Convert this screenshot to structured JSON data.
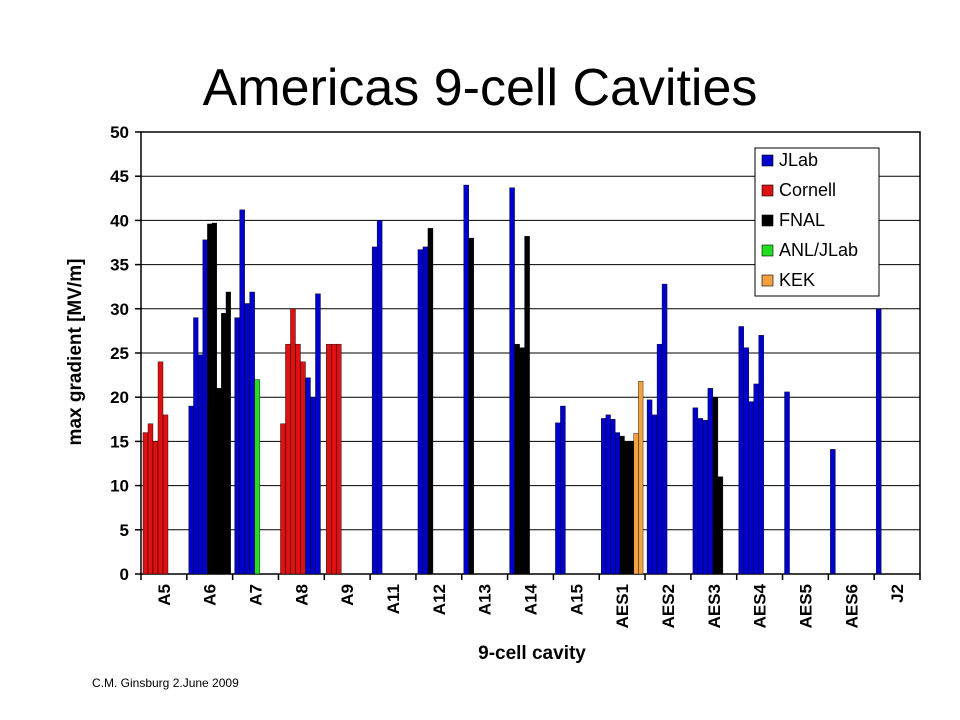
{
  "credit": "C.M. Ginsburg  2.June 2009",
  "colors": {
    "JLab": "#0000cc",
    "Cornell": "#dd1111",
    "FNAL": "#000000",
    "ANL/JLab": "#22dd22",
    "KEK": "#f5a040"
  },
  "chart_data": {
    "type": "bar",
    "title": "Americas 9-cell Cavities",
    "xlabel": "9-cell cavity",
    "ylabel": "max gradient [MV/m]",
    "ylim": [
      0,
      50
    ],
    "yticks": [
      0,
      5,
      10,
      15,
      20,
      25,
      30,
      35,
      40,
      45,
      50
    ],
    "grid": true,
    "legend": [
      "JLab",
      "Cornell",
      "FNAL",
      "ANL/JLab",
      "KEK"
    ],
    "legend_position": "top-right",
    "categories": [
      "A5",
      "A6",
      "A7",
      "A8",
      "A9",
      "A11",
      "A12",
      "A13",
      "A14",
      "A15",
      "AES1",
      "AES2",
      "AES3",
      "AES4",
      "AES5",
      "AES6",
      "J2"
    ],
    "groups": [
      {
        "category": "A5",
        "bars": [
          {
            "lab": "Cornell",
            "value": 16
          },
          {
            "lab": "Cornell",
            "value": 17
          },
          {
            "lab": "Cornell",
            "value": 15
          },
          {
            "lab": "Cornell",
            "value": 24
          },
          {
            "lab": "Cornell",
            "value": 18
          }
        ]
      },
      {
        "category": "A6",
        "bars": [
          {
            "lab": "JLab",
            "value": 19
          },
          {
            "lab": "JLab",
            "value": 29
          },
          {
            "lab": "JLab",
            "value": 24.8
          },
          {
            "lab": "JLab",
            "value": 37.8
          },
          {
            "lab": "FNAL",
            "value": 39.6
          },
          {
            "lab": "FNAL",
            "value": 39.7
          },
          {
            "lab": "FNAL",
            "value": 21
          },
          {
            "lab": "FNAL",
            "value": 29.5
          },
          {
            "lab": "FNAL",
            "value": 31.9
          }
        ]
      },
      {
        "category": "A7",
        "bars": [
          {
            "lab": "JLab",
            "value": 29
          },
          {
            "lab": "JLab",
            "value": 41.2
          },
          {
            "lab": "JLab",
            "value": 30.6
          },
          {
            "lab": "JLab",
            "value": 31.9
          },
          {
            "lab": "ANL/JLab",
            "value": 22
          }
        ]
      },
      {
        "category": "A8",
        "bars": [
          {
            "lab": "Cornell",
            "value": 17
          },
          {
            "lab": "Cornell",
            "value": 26
          },
          {
            "lab": "Cornell",
            "value": 30
          },
          {
            "lab": "Cornell",
            "value": 26
          },
          {
            "lab": "Cornell",
            "value": 24
          },
          {
            "lab": "JLab",
            "value": 22.2
          },
          {
            "lab": "JLab",
            "value": 20
          },
          {
            "lab": "JLab",
            "value": 31.7
          }
        ]
      },
      {
        "category": "A9",
        "bars": [
          {
            "lab": "Cornell",
            "value": 26
          },
          {
            "lab": "Cornell",
            "value": 26
          },
          {
            "lab": "Cornell",
            "value": 26
          }
        ]
      },
      {
        "category": "A11",
        "bars": [
          {
            "lab": "JLab",
            "value": 37
          },
          {
            "lab": "JLab",
            "value": 40
          }
        ]
      },
      {
        "category": "A12",
        "bars": [
          {
            "lab": "JLab",
            "value": 36.7
          },
          {
            "lab": "JLab",
            "value": 37
          },
          {
            "lab": "FNAL",
            "value": 39.1
          }
        ]
      },
      {
        "category": "A13",
        "bars": [
          {
            "lab": "JLab",
            "value": 44
          },
          {
            "lab": "FNAL",
            "value": 38
          }
        ]
      },
      {
        "category": "A14",
        "bars": [
          {
            "lab": "JLab",
            "value": 43.7
          },
          {
            "lab": "FNAL",
            "value": 26
          },
          {
            "lab": "FNAL",
            "value": 25.6
          },
          {
            "lab": "FNAL",
            "value": 38.2
          }
        ]
      },
      {
        "category": "A15",
        "bars": [
          {
            "lab": "JLab",
            "value": 17.1
          },
          {
            "lab": "JLab",
            "value": 19
          }
        ]
      },
      {
        "category": "AES1",
        "bars": [
          {
            "lab": "JLab",
            "value": 17.6
          },
          {
            "lab": "JLab",
            "value": 18
          },
          {
            "lab": "JLab",
            "value": 17.5
          },
          {
            "lab": "JLab",
            "value": 16
          },
          {
            "lab": "FNAL",
            "value": 15.6
          },
          {
            "lab": "FNAL",
            "value": 15
          },
          {
            "lab": "FNAL",
            "value": 15
          },
          {
            "lab": "KEK",
            "value": 15.9
          },
          {
            "lab": "KEK",
            "value": 21.8
          }
        ]
      },
      {
        "category": "AES2",
        "bars": [
          {
            "lab": "JLab",
            "value": 19.7
          },
          {
            "lab": "JLab",
            "value": 18
          },
          {
            "lab": "JLab",
            "value": 26
          },
          {
            "lab": "JLab",
            "value": 32.8
          }
        ]
      },
      {
        "category": "AES3",
        "bars": [
          {
            "lab": "JLab",
            "value": 18.8
          },
          {
            "lab": "JLab",
            "value": 17.6
          },
          {
            "lab": "JLab",
            "value": 17.4
          },
          {
            "lab": "JLab",
            "value": 21
          },
          {
            "lab": "FNAL",
            "value": 20
          },
          {
            "lab": "FNAL",
            "value": 11
          }
        ]
      },
      {
        "category": "AES4",
        "bars": [
          {
            "lab": "JLab",
            "value": 28
          },
          {
            "lab": "JLab",
            "value": 25.6
          },
          {
            "lab": "JLab",
            "value": 19.5
          },
          {
            "lab": "JLab",
            "value": 21.5
          },
          {
            "lab": "JLab",
            "value": 27
          }
        ]
      },
      {
        "category": "AES5",
        "bars": [
          {
            "lab": "JLab",
            "value": 20.6
          }
        ]
      },
      {
        "category": "AES6",
        "bars": [
          {
            "lab": "JLab",
            "value": 14.1
          }
        ]
      },
      {
        "category": "J2",
        "bars": [
          {
            "lab": "JLab",
            "value": 30
          }
        ]
      }
    ]
  }
}
